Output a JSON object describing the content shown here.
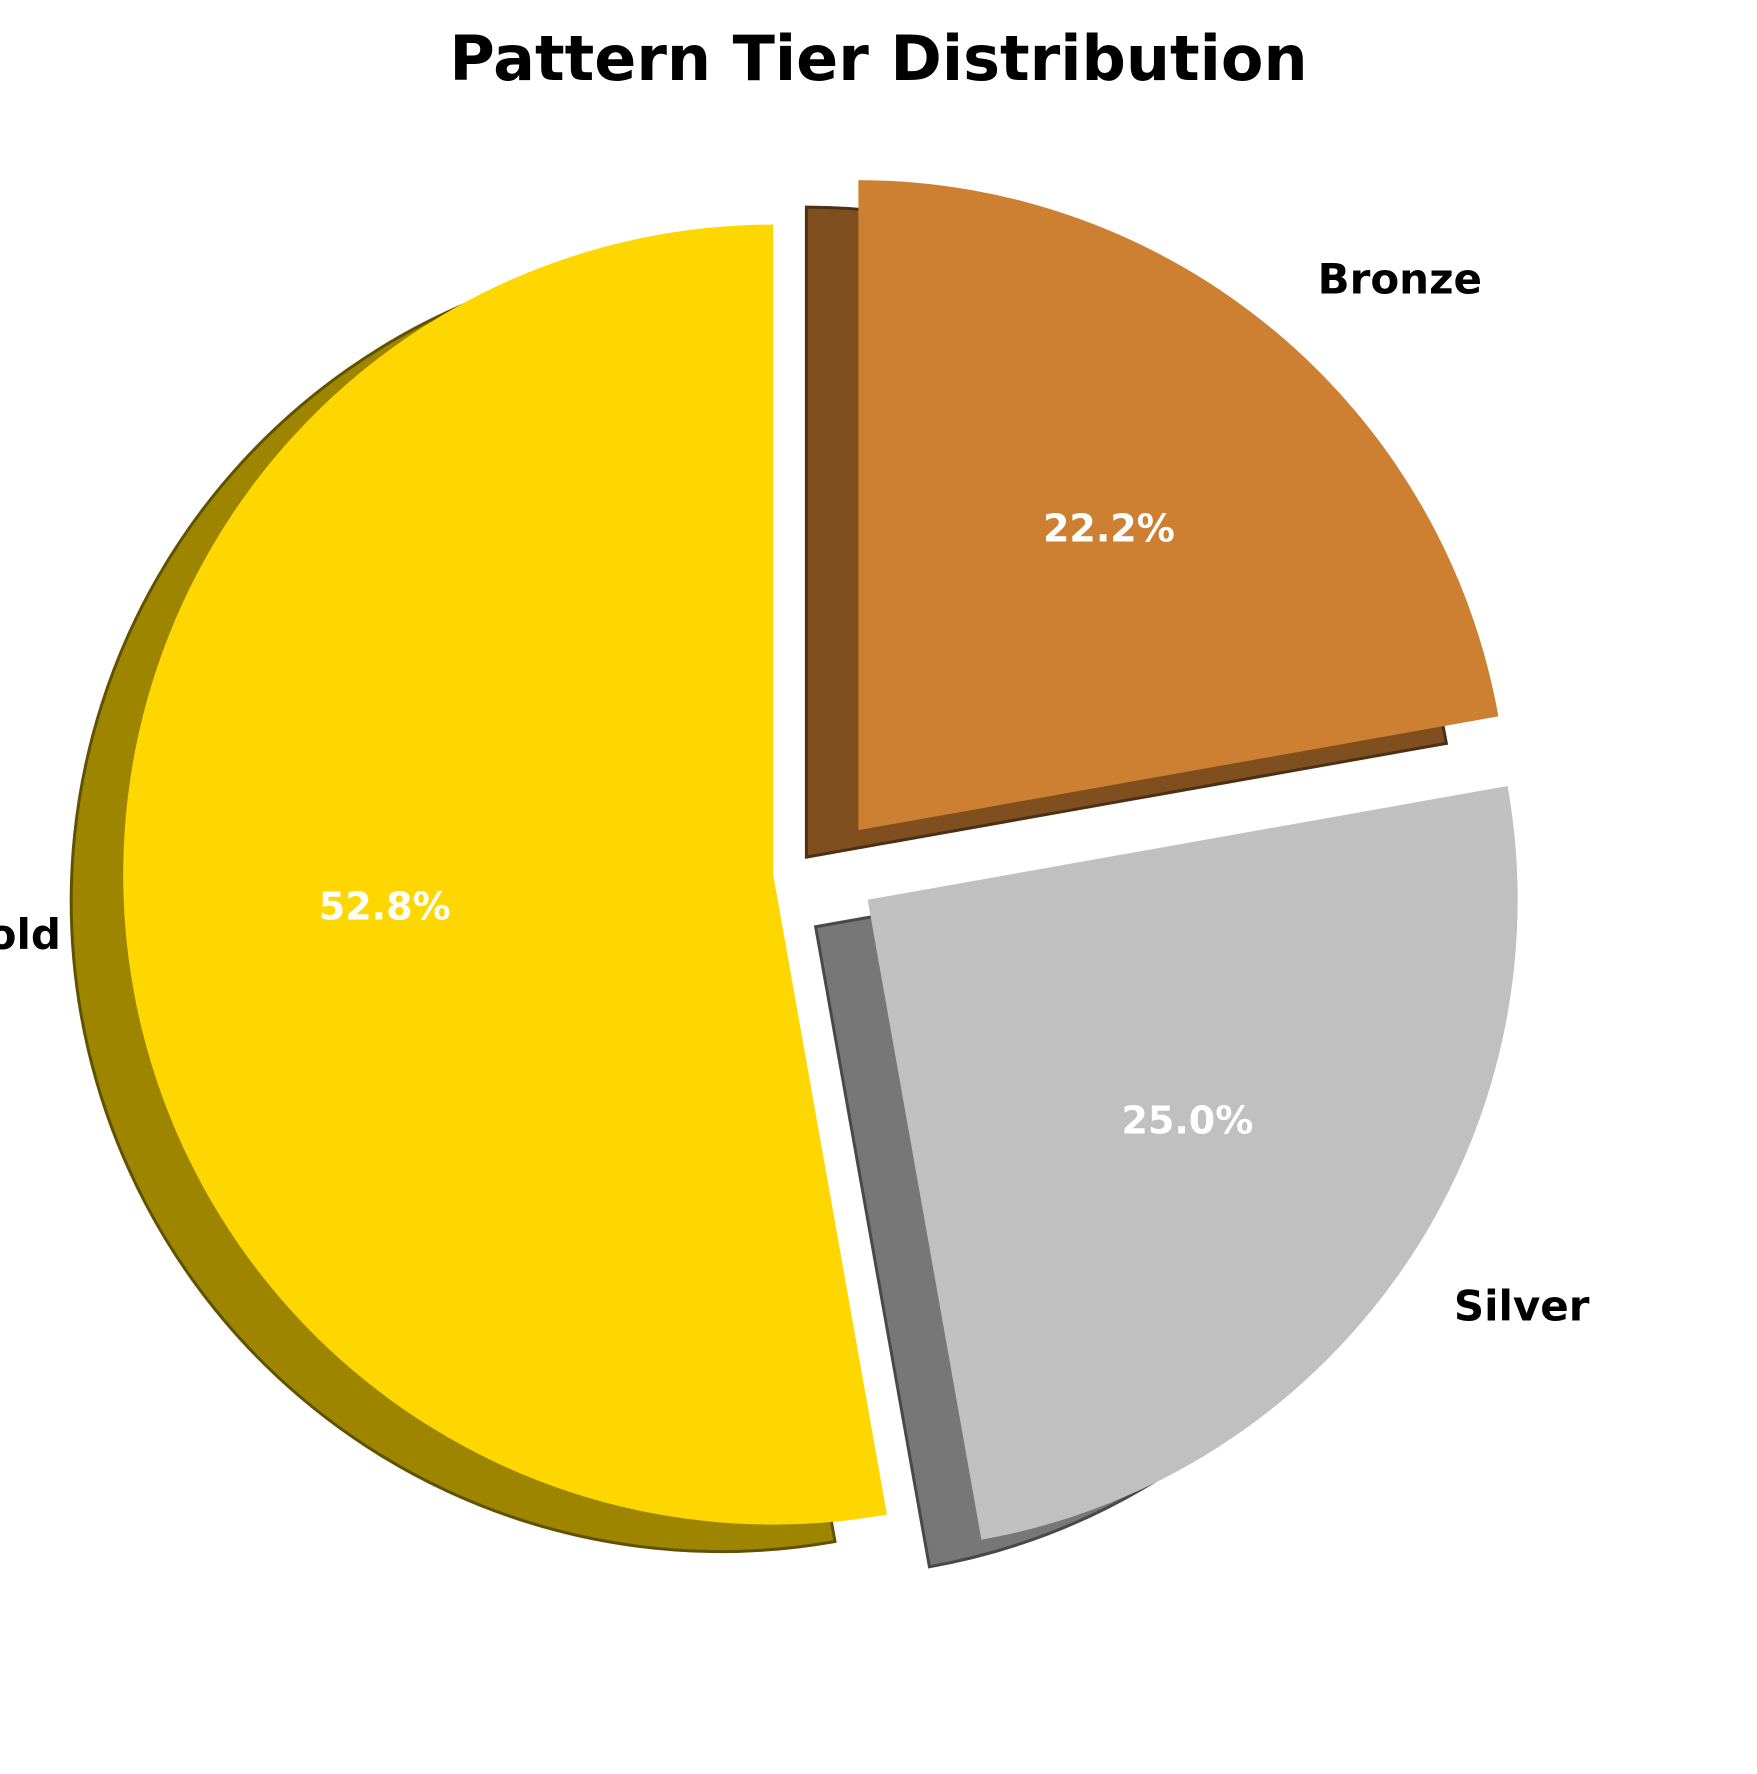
{
  "chart_data": {
    "type": "pie",
    "title": "Pattern Tier Distribution",
    "slices": [
      {
        "label": "Gold",
        "value": 52.8,
        "pct_label": "52.8%",
        "color": "#FFD700",
        "exploded": true
      },
      {
        "label": "Silver",
        "value": 25.0,
        "pct_label": "25.0%",
        "color": "#C0C0C0",
        "exploded": true
      },
      {
        "label": "Bronze",
        "value": 22.2,
        "pct_label": "22.2%",
        "color": "#CD7F32",
        "exploded": true
      }
    ],
    "start_angle_deg": 90,
    "direction": "counterclockwise",
    "shadow": true,
    "legend": false
  }
}
